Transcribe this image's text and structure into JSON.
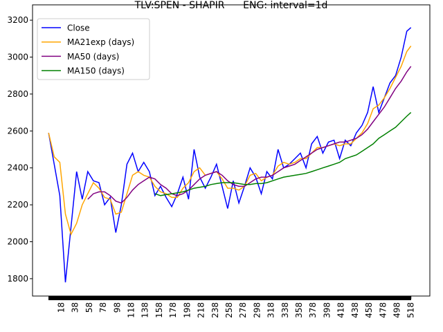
{
  "chart_data": {
    "type": "line",
    "title": "TLV:SPEN - SHAPIR      ENG: interval=1d",
    "x": [
      0,
      8,
      16,
      24,
      32,
      40,
      48,
      56,
      64,
      72,
      80,
      88,
      96,
      104,
      112,
      120,
      128,
      136,
      144,
      152,
      160,
      168,
      176,
      184,
      192,
      200,
      208,
      216,
      224,
      232,
      240,
      248,
      256,
      264,
      272,
      280,
      288,
      296,
      304,
      312,
      320,
      328,
      336,
      344,
      352,
      360,
      368,
      376,
      384,
      392,
      400,
      408,
      416,
      424,
      432,
      440,
      448,
      456,
      464,
      472,
      480,
      488,
      496,
      504,
      512,
      518
    ],
    "series": [
      {
        "name": "Close",
        "color": "#0000ff",
        "values": [
          2590,
          2420,
          2250,
          1780,
          2080,
          2380,
          2230,
          2380,
          2330,
          2320,
          2200,
          2240,
          2050,
          2200,
          2420,
          2480,
          2380,
          2430,
          2380,
          2250,
          2300,
          2240,
          2190,
          2260,
          2350,
          2230,
          2500,
          2350,
          2290,
          2350,
          2420,
          2300,
          2180,
          2330,
          2210,
          2300,
          2400,
          2350,
          2260,
          2380,
          2340,
          2500,
          2400,
          2420,
          2450,
          2480,
          2400,
          2530,
          2570,
          2480,
          2540,
          2550,
          2450,
          2550,
          2520,
          2590,
          2630,
          2700,
          2840,
          2700,
          2780,
          2860,
          2900,
          3000,
          3140,
          3160
        ]
      },
      {
        "name": "MA21exp (days)",
        "color": "#ffa500",
        "values": [
          2590,
          2460,
          2430,
          2150,
          2040,
          2100,
          2200,
          2260,
          2320,
          2290,
          2240,
          2230,
          2150,
          2160,
          2260,
          2360,
          2380,
          2360,
          2350,
          2300,
          2270,
          2260,
          2240,
          2240,
          2290,
          2320,
          2380,
          2400,
          2360,
          2370,
          2380,
          2340,
          2290,
          2290,
          2280,
          2300,
          2360,
          2370,
          2330,
          2350,
          2360,
          2410,
          2430,
          2420,
          2430,
          2450,
          2450,
          2480,
          2510,
          2510,
          2520,
          2530,
          2520,
          2530,
          2530,
          2560,
          2590,
          2640,
          2720,
          2740,
          2780,
          2830,
          2890,
          2950,
          3030,
          3060
        ]
      },
      {
        "name": "MA50 (days)",
        "color": "#800080",
        "values": [
          null,
          null,
          null,
          null,
          null,
          null,
          null,
          2230,
          2260,
          2270,
          2270,
          2250,
          2220,
          2210,
          2240,
          2280,
          2310,
          2330,
          2350,
          2340,
          2310,
          2290,
          2260,
          2250,
          2260,
          2280,
          2310,
          2340,
          2360,
          2370,
          2380,
          2360,
          2330,
          2310,
          2300,
          2300,
          2320,
          2340,
          2350,
          2350,
          2360,
          2380,
          2400,
          2410,
          2420,
          2440,
          2460,
          2480,
          2500,
          2510,
          2520,
          2530,
          2540,
          2540,
          2550,
          2560,
          2580,
          2610,
          2650,
          2690,
          2730,
          2780,
          2830,
          2870,
          2920,
          2950
        ]
      },
      {
        "name": "MA150 (days)",
        "color": "#008000",
        "values": [
          null,
          null,
          null,
          null,
          null,
          null,
          null,
          null,
          null,
          null,
          null,
          null,
          null,
          null,
          null,
          null,
          null,
          null,
          null,
          2260,
          2250,
          2255,
          2260,
          2265,
          2270,
          2280,
          2290,
          2295,
          2300,
          2310,
          2315,
          2320,
          2320,
          2320,
          2315,
          2310,
          2310,
          2315,
          2315,
          2320,
          2330,
          2340,
          2350,
          2355,
          2360,
          2365,
          2370,
          2380,
          2390,
          2400,
          2410,
          2420,
          2430,
          2450,
          2460,
          2470,
          2490,
          2510,
          2530,
          2560,
          2580,
          2600,
          2620,
          2650,
          2680,
          2700
        ]
      }
    ],
    "xlim": [
      -23,
      545
    ],
    "xticks": [
      18,
      38,
      58,
      78,
      98,
      118,
      138,
      158,
      178,
      198,
      218,
      238,
      258,
      278,
      298,
      318,
      338,
      358,
      378,
      398,
      418,
      438,
      458,
      478,
      498,
      518
    ],
    "ylim": [
      1706,
      3283
    ],
    "yticks": [
      1800,
      2000,
      2200,
      2400,
      2600,
      2800,
      3000,
      3200
    ],
    "legend": "upper left"
  }
}
